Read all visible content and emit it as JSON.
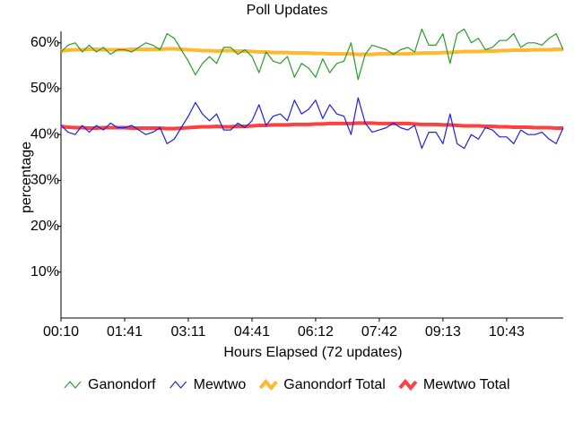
{
  "chart_data": {
    "type": "line",
    "title": "Poll Updates",
    "x_label": "Hours Elapsed (72 updates)",
    "y_label": "percentage",
    "categories": [
      "00:10",
      null,
      null,
      null,
      null,
      null,
      null,
      null,
      null,
      "01:41",
      null,
      null,
      null,
      null,
      null,
      null,
      null,
      null,
      "03:11",
      null,
      null,
      null,
      null,
      null,
      null,
      null,
      null,
      "04:41",
      null,
      null,
      null,
      null,
      null,
      null,
      null,
      null,
      "06:12",
      null,
      null,
      null,
      null,
      null,
      null,
      null,
      null,
      "07:42",
      null,
      null,
      null,
      null,
      null,
      null,
      null,
      null,
      "09:13",
      null,
      null,
      null,
      null,
      null,
      null,
      null,
      null,
      "10:43",
      null,
      null,
      null,
      null,
      null,
      null,
      null,
      null
    ],
    "ylim": [
      0,
      62.5
    ],
    "yticks": [
      {
        "value": 10,
        "label": "10%"
      },
      {
        "value": 20,
        "label": "20%"
      },
      {
        "value": 30,
        "label": "30%"
      },
      {
        "value": 40,
        "label": "40%"
      },
      {
        "value": 50,
        "label": "50%"
      },
      {
        "value": 60,
        "label": "60%"
      }
    ],
    "grid": false,
    "legend": "bottom",
    "series": [
      {
        "name": "Ganondorf",
        "color": "#2e9a2e",
        "width": 1.2,
        "values": [
          58,
          59.5,
          60,
          58,
          59.5,
          58,
          59,
          57.5,
          58.5,
          58.5,
          58,
          59,
          60,
          59.5,
          58.5,
          62,
          61,
          58.5,
          56,
          53,
          55.5,
          57,
          55.5,
          59,
          59,
          57.5,
          58.5,
          57,
          53.5,
          58,
          56,
          55.5,
          57,
          52.5,
          55.5,
          54.5,
          52.5,
          56.5,
          53.5,
          55.5,
          56,
          60,
          52,
          57.5,
          59.5,
          59,
          58.5,
          57.5,
          58.5,
          59,
          58,
          63,
          59.5,
          59.5,
          62,
          55.5,
          62,
          63,
          60,
          61,
          58.5,
          59,
          60.5,
          60.5,
          62,
          59,
          60,
          60,
          59.5,
          61,
          62,
          58.5
        ]
      },
      {
        "name": "Mewtwo",
        "color": "#2020e0",
        "width": 1.2,
        "values": [
          42,
          40.5,
          40,
          42,
          40.5,
          42,
          41,
          42.5,
          41.5,
          41.5,
          42,
          41,
          40,
          40.5,
          41.5,
          38,
          39,
          41.5,
          44,
          47,
          44.5,
          43,
          44.5,
          41,
          41,
          42.5,
          41.5,
          43,
          46.5,
          42,
          44,
          44.5,
          43,
          47.5,
          44.5,
          45.5,
          47.5,
          43.5,
          46.5,
          44.5,
          44,
          40,
          48,
          42.5,
          40.5,
          41,
          41.5,
          42.5,
          41.5,
          41,
          42,
          37,
          40.5,
          40.5,
          38,
          44.5,
          38,
          37,
          40,
          39,
          41.5,
          41,
          39.5,
          39.5,
          38,
          41,
          40,
          40,
          40.5,
          39,
          38,
          41.5
        ]
      },
      {
        "name": "Ganondorf Total",
        "color": "#ffb830",
        "width": 4,
        "values": [
          58.2,
          58.4,
          58.5,
          58.5,
          58.6,
          58.6,
          58.5,
          58.5,
          58.5,
          58.5,
          58.6,
          58.6,
          58.6,
          58.6,
          58.6,
          58.7,
          58.7,
          58.6,
          58.5,
          58.4,
          58.3,
          58.3,
          58.2,
          58.3,
          58.3,
          58.2,
          58.2,
          58.1,
          58.0,
          58.0,
          57.9,
          57.9,
          57.9,
          57.8,
          57.8,
          57.8,
          57.7,
          57.7,
          57.6,
          57.6,
          57.6,
          57.6,
          57.5,
          57.5,
          57.5,
          57.6,
          57.6,
          57.6,
          57.6,
          57.6,
          57.7,
          57.8,
          57.8,
          57.8,
          57.9,
          57.9,
          58.0,
          58.1,
          58.1,
          58.1,
          58.2,
          58.2,
          58.3,
          58.3,
          58.4,
          58.4,
          58.4,
          58.5,
          58.5,
          58.5,
          58.6,
          58.6
        ]
      },
      {
        "name": "Mewtwo Total",
        "color": "#ff4040",
        "width": 4,
        "values": [
          41.8,
          41.6,
          41.5,
          41.5,
          41.4,
          41.4,
          41.5,
          41.5,
          41.5,
          41.5,
          41.4,
          41.4,
          41.4,
          41.4,
          41.4,
          41.3,
          41.3,
          41.4,
          41.5,
          41.6,
          41.7,
          41.7,
          41.8,
          41.7,
          41.7,
          41.8,
          41.8,
          41.9,
          42.0,
          42.0,
          42.1,
          42.1,
          42.1,
          42.2,
          42.2,
          42.2,
          42.3,
          42.3,
          42.4,
          42.4,
          42.4,
          42.4,
          42.5,
          42.5,
          42.5,
          42.4,
          42.4,
          42.4,
          42.4,
          42.4,
          42.3,
          42.2,
          42.2,
          42.2,
          42.1,
          42.1,
          42.0,
          41.9,
          41.9,
          41.9,
          41.8,
          41.8,
          41.7,
          41.7,
          41.6,
          41.6,
          41.6,
          41.5,
          41.5,
          41.5,
          41.4,
          41.4
        ]
      }
    ]
  }
}
